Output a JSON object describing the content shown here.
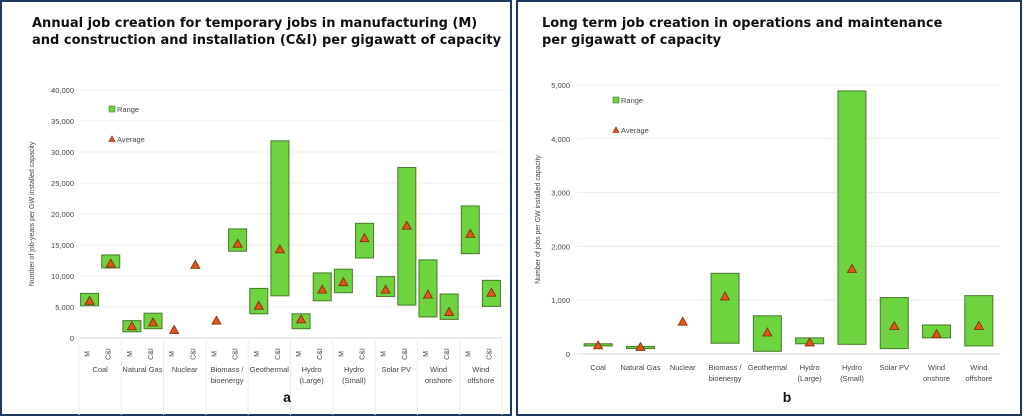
{
  "chart_data": [
    {
      "type": "range",
      "panel_label": "a",
      "title": "Annual job creation for temporary jobs in manufacturing (M)\nand construction and installation (C&I) per gigawatt of capacity",
      "ylabel": "Number of job-years per GW installed capacity",
      "ylim": [
        0,
        40000
      ],
      "yticks": [
        "0",
        "5,000",
        "10,000",
        "15,000",
        "20,000",
        "25,000",
        "30,000",
        "35,000",
        "40,000"
      ],
      "grid": true,
      "legend": {
        "range": "Range",
        "average": "Average",
        "placement": "top-left"
      },
      "categories": [
        "Coal",
        "Natural Gas",
        "Nuclear",
        "Biomass /\nbioenergy",
        "Geothermal",
        "Hydro\n(Large)",
        "Hydro\n(Small)",
        "Solar PV",
        "Wind\nonshore",
        "Wind\noffshore"
      ],
      "subcategories": [
        "M",
        "C&I"
      ],
      "points": [
        [
          {
            "min": 5200,
            "max": 7200,
            "avg": 6000
          },
          {
            "min": 11300,
            "max": 13400,
            "avg": 12000
          }
        ],
        [
          {
            "min": 1000,
            "max": 2800,
            "avg": 1900
          },
          {
            "min": 1500,
            "max": 4000,
            "avg": 2500
          }
        ],
        [
          {
            "min": null,
            "max": null,
            "avg": 1300
          },
          {
            "min": null,
            "max": null,
            "avg": 11800
          }
        ],
        [
          {
            "min": null,
            "max": null,
            "avg": 2800
          },
          {
            "min": 14000,
            "max": 17600,
            "avg": 15200
          }
        ],
        [
          {
            "min": 3900,
            "max": 8000,
            "avg": 5200
          },
          {
            "min": 6800,
            "max": 31800,
            "avg": 14300
          }
        ],
        [
          {
            "min": 1500,
            "max": 3900,
            "avg": 3000
          },
          {
            "min": 6000,
            "max": 10500,
            "avg": 7800
          }
        ],
        [
          {
            "min": 7300,
            "max": 11100,
            "avg": 9000
          },
          {
            "min": 12900,
            "max": 18500,
            "avg": 16100
          }
        ],
        [
          {
            "min": 6700,
            "max": 9900,
            "avg": 7800
          },
          {
            "min": 5300,
            "max": 27500,
            "avg": 18100
          }
        ],
        [
          {
            "min": 3400,
            "max": 12600,
            "avg": 7000
          },
          {
            "min": 3000,
            "max": 7100,
            "avg": 4200
          }
        ],
        [
          {
            "min": 13600,
            "max": 21300,
            "avg": 16800
          },
          {
            "min": 5100,
            "max": 9300,
            "avg": 7300
          }
        ]
      ]
    },
    {
      "type": "range",
      "panel_label": "b",
      "title": "Long term job creation in operations and maintenance\nper gigawatt of capacity",
      "ylabel": "Number of jobs per GW installed capacity",
      "ylim": [
        0,
        5000
      ],
      "yticks": [
        "0",
        "1,000",
        "2,000",
        "3,000",
        "4,000",
        "5,000"
      ],
      "grid": true,
      "legend": {
        "range": "Range",
        "average": "Average",
        "placement": "top-left"
      },
      "categories": [
        "Coal",
        "Natural Gas",
        "Nuclear",
        "Biomass /\nbioenergy",
        "Geothermal",
        "Hydro\n(Large)",
        "Hydro\n(Small)",
        "Solar PV",
        "Wind\nonshore",
        "Wind\noffshore"
      ],
      "points": [
        {
          "min": 150,
          "max": 190,
          "avg": 160
        },
        {
          "min": 100,
          "max": 140,
          "avg": 130
        },
        {
          "min": null,
          "max": null,
          "avg": 600
        },
        {
          "min": 200,
          "max": 1500,
          "avg": 1070
        },
        {
          "min": 50,
          "max": 710,
          "avg": 400
        },
        {
          "min": 190,
          "max": 300,
          "avg": 215
        },
        {
          "min": 180,
          "max": 4890,
          "avg": 1580
        },
        {
          "min": 100,
          "max": 1050,
          "avg": 520
        },
        {
          "min": 300,
          "max": 540,
          "avg": 370
        },
        {
          "min": 150,
          "max": 1085,
          "avg": 520
        }
      ]
    }
  ],
  "colors": {
    "range_fill": "#6dd33f",
    "range_stroke": "#4a7a2c",
    "average_fill": "#e2551b",
    "average_stroke": "#7a2a0a",
    "border": "#1f3864"
  }
}
